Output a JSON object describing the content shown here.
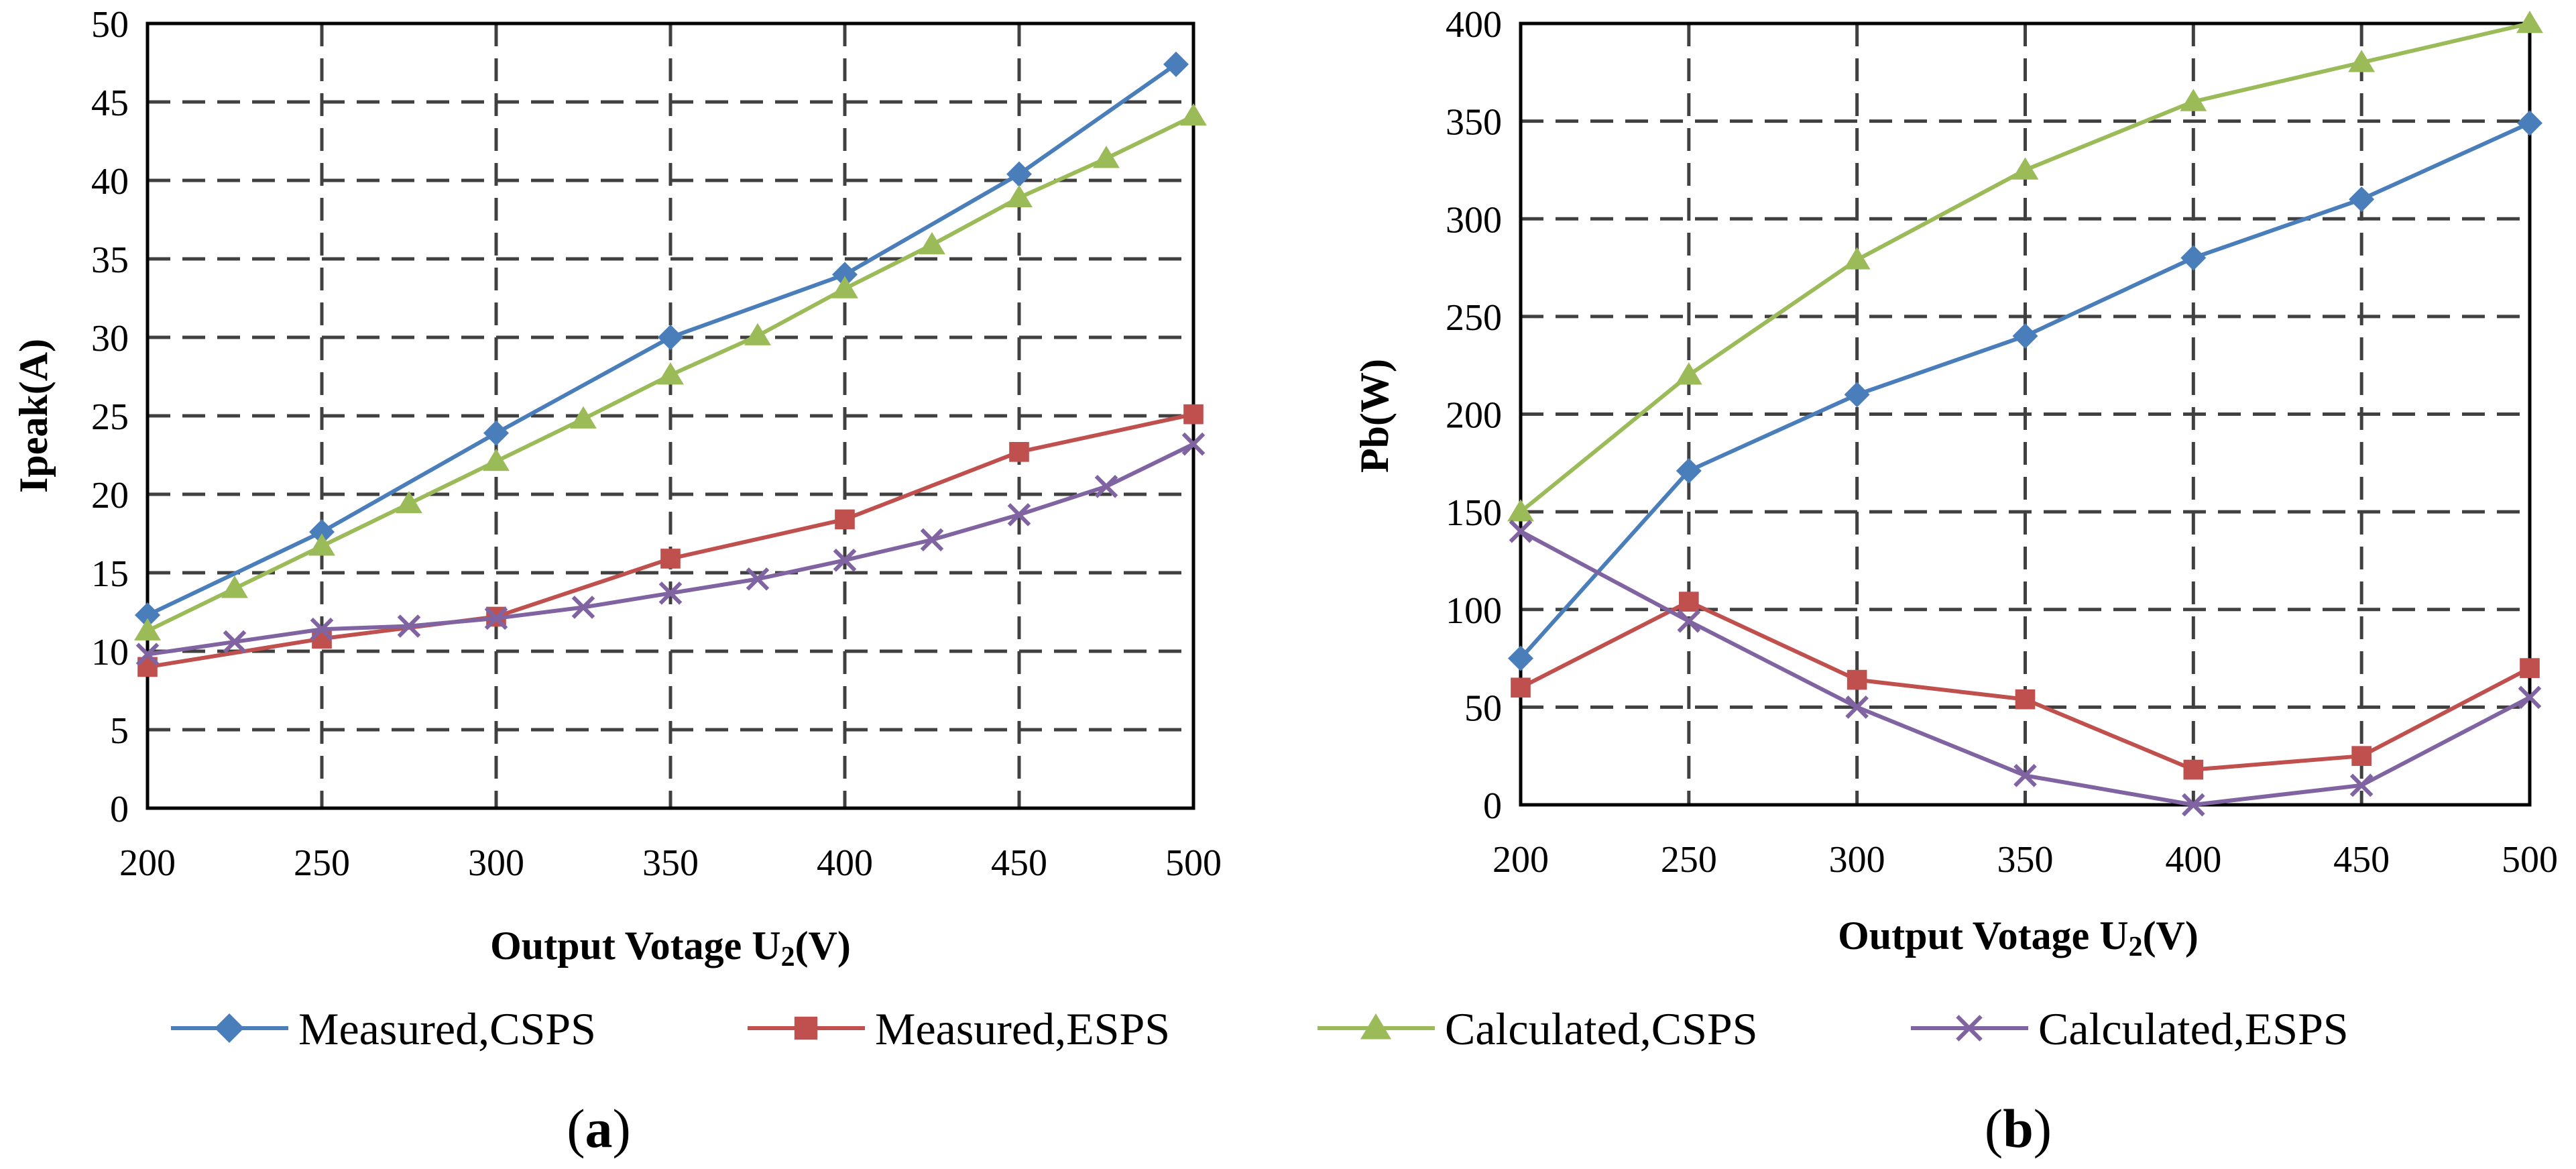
{
  "colors": {
    "measured_csps": "#4A7EBB",
    "measured_esps": "#C0504D",
    "calculated_csps": "#9BBB59",
    "calculated_esps": "#8064A2"
  },
  "legend": [
    {
      "label": "Measured,CSPS",
      "marker": "diamond",
      "color": "#4A7EBB"
    },
    {
      "label": "Measured,ESPS",
      "marker": "square",
      "color": "#C0504D"
    },
    {
      "label": "Calculated,CSPS",
      "marker": "triangle",
      "color": "#9BBB59"
    },
    {
      "label": "Calculated,ESPS",
      "marker": "x",
      "color": "#8064A2"
    }
  ],
  "chart_data": [
    {
      "type": "line",
      "panel_label_open": "(",
      "panel_label_letter": "a",
      "panel_label_close": ")",
      "xlabel_main": "Output Votage U",
      "xlabel_sub": "2",
      "xlabel_unit": "(V)",
      "ylabel": "Ipeak(A)",
      "xlim": [
        200,
        500
      ],
      "ylim": [
        0,
        50
      ],
      "xticks": [
        "200",
        "250",
        "300",
        "350",
        "400",
        "450",
        "500"
      ],
      "yticks": [
        "0",
        "5",
        "10",
        "15",
        "20",
        "25",
        "30",
        "35",
        "40",
        "45",
        "50"
      ],
      "grid": true,
      "series": [
        {
          "name": "Measured,CSPS",
          "marker": "diamond",
          "color": "#4A7EBB",
          "x": [
            200,
            250,
            300,
            350,
            400,
            450,
            495
          ],
          "y": [
            12.3,
            17.6,
            23.9,
            30.0,
            34.0,
            40.4,
            47.4
          ]
        },
        {
          "name": "Measured,ESPS",
          "marker": "square",
          "color": "#C0504D",
          "x": [
            200,
            250,
            300,
            350,
            400,
            450,
            500
          ],
          "y": [
            9.0,
            10.8,
            12.2,
            15.9,
            18.4,
            22.7,
            25.1
          ]
        },
        {
          "name": "Calculated,CSPS",
          "marker": "triangle",
          "color": "#9BBB59",
          "x": [
            200,
            225,
            250,
            275,
            300,
            325,
            350,
            375,
            400,
            425,
            450,
            475,
            500
          ],
          "y": [
            11.3,
            14.0,
            16.7,
            19.4,
            22.1,
            24.8,
            27.6,
            30.1,
            33.1,
            35.9,
            38.9,
            41.4,
            44.1
          ]
        },
        {
          "name": "Calculated,ESPS",
          "marker": "x",
          "color": "#8064A2",
          "x": [
            200,
            225,
            250,
            275,
            300,
            325,
            350,
            375,
            400,
            425,
            450,
            475,
            500
          ],
          "y": [
            9.8,
            10.6,
            11.4,
            11.6,
            12.1,
            12.8,
            13.7,
            14.6,
            15.8,
            17.1,
            18.7,
            20.5,
            23.2
          ]
        }
      ]
    },
    {
      "type": "line",
      "panel_label_open": "(",
      "panel_label_letter": "b",
      "panel_label_close": ")",
      "xlabel_main": "Output Votage U",
      "xlabel_sub": "2",
      "xlabel_unit": "(V)",
      "ylabel": "Pb(W)",
      "xlim": [
        200,
        500
      ],
      "ylim": [
        0,
        400
      ],
      "xticks": [
        "200",
        "250",
        "300",
        "350",
        "400",
        "450",
        "500"
      ],
      "yticks": [
        "0",
        "50",
        "100",
        "150",
        "200",
        "250",
        "300",
        "350",
        "400"
      ],
      "grid": true,
      "series": [
        {
          "name": "Measured,CSPS",
          "marker": "diamond",
          "color": "#4A7EBB",
          "x": [
            200,
            250,
            300,
            350,
            400,
            450,
            500
          ],
          "y": [
            75,
            171,
            210,
            240,
            280,
            310,
            349
          ]
        },
        {
          "name": "Measured,ESPS",
          "marker": "square",
          "color": "#C0504D",
          "x": [
            200,
            250,
            300,
            350,
            400,
            450,
            500
          ],
          "y": [
            60,
            104,
            64,
            54,
            18,
            25,
            70
          ]
        },
        {
          "name": "Calculated,CSPS",
          "marker": "triangle",
          "color": "#9BBB59",
          "x": [
            200,
            250,
            300,
            350,
            400,
            450,
            500
          ],
          "y": [
            150,
            220,
            279,
            325,
            360,
            380,
            400
          ]
        },
        {
          "name": "Calculated,ESPS",
          "marker": "x",
          "color": "#8064A2",
          "x": [
            200,
            250,
            300,
            350,
            400,
            450,
            500
          ],
          "y": [
            140,
            94,
            50,
            15,
            0,
            10,
            55
          ]
        }
      ]
    }
  ]
}
